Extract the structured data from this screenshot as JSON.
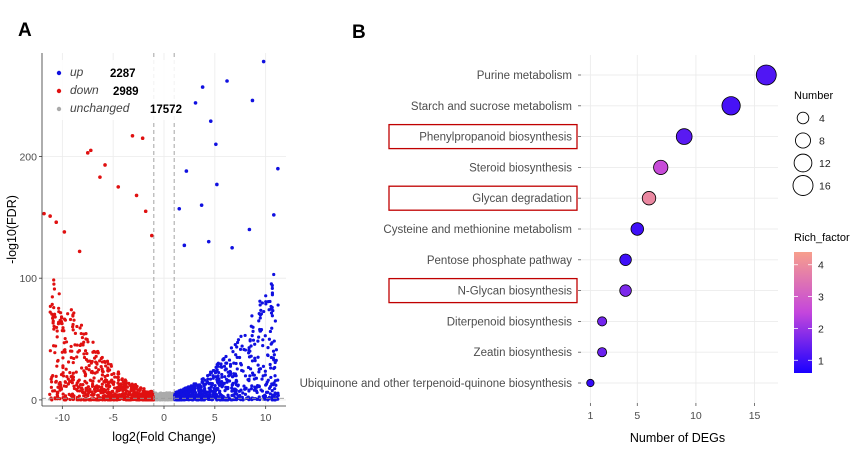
{
  "panels": {
    "a_label": "A",
    "b_label": "B"
  },
  "chart_data": [
    {
      "type": "scatter",
      "title": "",
      "xlabel": "log2(Fold Change)",
      "ylabel": "-log10(FDR)",
      "xlim": [
        -12,
        12
      ],
      "ylim": [
        -5,
        285
      ],
      "xticks": [
        -10,
        -5,
        0,
        5,
        10
      ],
      "yticks": [
        0,
        100,
        200
      ],
      "grid": true,
      "legend_position": "top-left",
      "threshold_lines": {
        "x": [
          -1,
          1
        ],
        "y": 1.3
      },
      "series": [
        {
          "name": "up",
          "count": "2287",
          "color": "#1010e0",
          "points": [
            [
              9.8,
              278
            ],
            [
              11.2,
              190
            ],
            [
              6.2,
              262
            ],
            [
              8.7,
              246
            ],
            [
              3.8,
              257
            ],
            [
              2.2,
              188
            ],
            [
              5.1,
              210
            ],
            [
              4.6,
              229
            ],
            [
              3.1,
              244
            ],
            [
              3.7,
              160
            ],
            [
              5.2,
              177
            ],
            [
              10.8,
              152
            ],
            [
              1.5,
              157
            ],
            [
              2.0,
              127
            ],
            [
              4.4,
              130
            ],
            [
              6.7,
              125
            ],
            [
              8.4,
              140
            ]
          ]
        },
        {
          "name": "down",
          "count": "2989",
          "color": "#e01010",
          "points": [
            [
              -3.1,
              217
            ],
            [
              -2.1,
              215
            ],
            [
              -7.5,
              203
            ],
            [
              -7.2,
              205
            ],
            [
              -5.8,
              193
            ],
            [
              -11.2,
              151
            ],
            [
              -11.8,
              153
            ],
            [
              -10.6,
              146
            ],
            [
              -9.8,
              138
            ],
            [
              -6.3,
              183
            ],
            [
              -4.5,
              175
            ],
            [
              -1.8,
              155
            ],
            [
              -2.7,
              168
            ],
            [
              -8.3,
              122
            ],
            [
              -1.2,
              135
            ]
          ]
        },
        {
          "name": "unchanged",
          "count": "17572",
          "color": "#aaaaaa",
          "points": []
        }
      ]
    },
    {
      "type": "scatter",
      "title": "",
      "xlabel": "Number of DEGs",
      "ylabel": "",
      "xlim": [
        0.2,
        17
      ],
      "xticks": [
        1,
        5,
        10,
        15
      ],
      "grid": true,
      "categories": [
        "Purine metabolism",
        "Starch and sucrose metabolism",
        "Phenylpropanoid biosynthesis",
        "Steroid biosynthesis",
        "Glycan degradation",
        "Cysteine and methionine metabolism",
        "Pentose phosphate pathway",
        "N-Glycan biosynthesis",
        "Diterpenoid biosynthesis",
        "Zeatin biosynthesis",
        "Ubiquinone and other terpenoid-quinone biosynthesis"
      ],
      "values": [
        16,
        13,
        9,
        7,
        6,
        5,
        4,
        4,
        2,
        2,
        1
      ],
      "rich_factor": [
        1.2,
        1.1,
        1.3,
        2.6,
        3.9,
        1.0,
        1.0,
        1.7,
        1.6,
        1.5,
        0.9
      ],
      "highlighted": [
        "Phenylpropanoid biosynthesis",
        "Glycan degradation",
        "N-Glycan biosynthesis"
      ],
      "highlight_color": "#c00000",
      "size_legend": {
        "title": "Number",
        "values": [
          4,
          8,
          12,
          16
        ],
        "labels": [
          "4",
          "8",
          "12",
          "16"
        ]
      },
      "color_legend": {
        "title": "Rich_factor",
        "ticks": [
          1,
          2,
          3,
          4
        ],
        "labels": [
          "1",
          "2",
          "3",
          "4"
        ],
        "low_color": "#1a00ff",
        "high_color": "#f79f8c",
        "range": [
          0.6,
          4.4
        ]
      }
    }
  ]
}
